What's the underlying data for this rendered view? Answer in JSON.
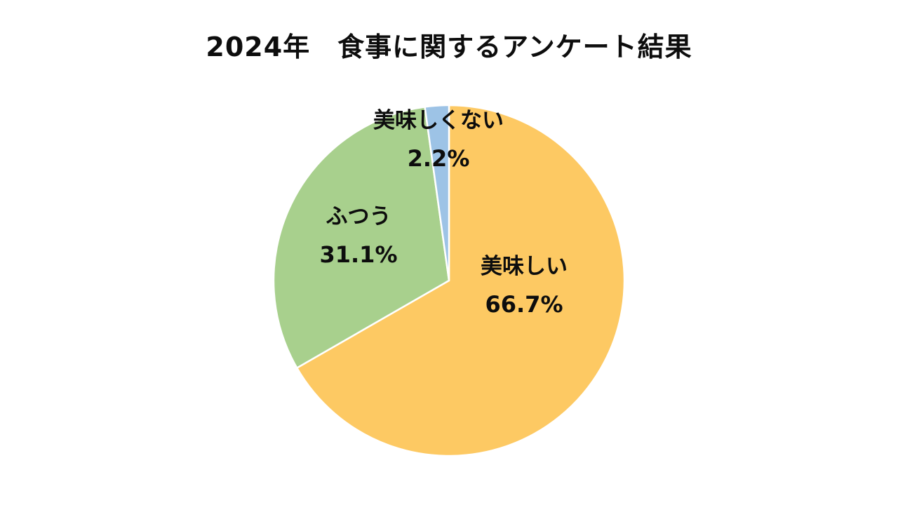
{
  "chart_data": {
    "type": "pie",
    "title": "2024年　食事に関するアンケート結果",
    "start_angle_deg": 0,
    "direction": "clockwise",
    "stroke_color": "#ffffff",
    "background_color": "#ffffff",
    "text_color": "#0d0d0d",
    "slices": [
      {
        "label": "美味しい",
        "value": 66.7,
        "percent_label": "66.7%",
        "color": "#FDC963"
      },
      {
        "label": "ふつう",
        "value": 31.1,
        "percent_label": "31.1%",
        "color": "#A8D08D"
      },
      {
        "label": "美味しくない",
        "value": 2.2,
        "percent_label": "2.2%",
        "color": "#9DC3E6"
      }
    ]
  }
}
